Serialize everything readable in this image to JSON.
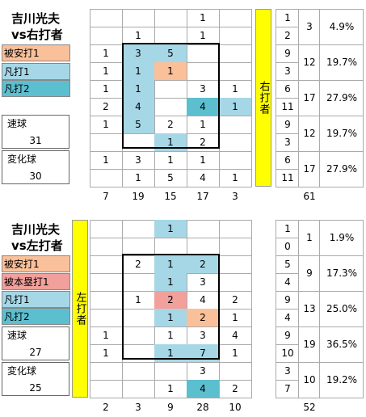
{
  "colors": {
    "hit": "#f9c09a",
    "hr": "#f1a09c",
    "out1": "#a6d7e6",
    "out2": "#5bbfcf",
    "bar": "#ffff00"
  },
  "legend_hit": "被安打1",
  "legend_hr": "被本塁打1",
  "legend_out1": "凡打1",
  "legend_out2": "凡打2",
  "pitch_fast_label": "速球",
  "pitch_break_label": "変化球",
  "chart_data": [
    {
      "type": "table",
      "title": "吉川光夫",
      "subtitle": "vs右打者",
      "side_label": "右打者",
      "legend": [
        "被安打1",
        "凡打1",
        "凡打2"
      ],
      "pitch": {
        "fast": "31",
        "breaking": "30"
      },
      "cells": [
        [
          {
            "v": ""
          },
          {
            "v": ""
          },
          {
            "v": ""
          },
          {
            "v": "1"
          },
          {
            "v": ""
          }
        ],
        [
          {
            "v": ""
          },
          {
            "v": "1"
          },
          {
            "v": ""
          },
          {
            "v": "1"
          },
          {
            "v": ""
          }
        ],
        [
          {
            "v": "1"
          },
          {
            "v": "3",
            "c": "out1"
          },
          {
            "v": "5",
            "c": "out1"
          },
          {
            "v": ""
          },
          {
            "v": ""
          }
        ],
        [
          {
            "v": "1"
          },
          {
            "v": "1",
            "c": "out1"
          },
          {
            "v": "1",
            "c": "hit"
          },
          {
            "v": ""
          },
          {
            "v": ""
          }
        ],
        [
          {
            "v": "1"
          },
          {
            "v": "1",
            "c": "out1"
          },
          {
            "v": ""
          },
          {
            "v": "3"
          },
          {
            "v": "1"
          }
        ],
        [
          {
            "v": "2"
          },
          {
            "v": "4",
            "c": "out1"
          },
          {
            "v": ""
          },
          {
            "v": "4",
            "c": "out2"
          },
          {
            "v": "1",
            "c": "out1"
          }
        ],
        [
          {
            "v": "1"
          },
          {
            "v": "5",
            "c": "out1"
          },
          {
            "v": "2"
          },
          {
            "v": "1"
          },
          {
            "v": ""
          }
        ],
        [
          {
            "v": ""
          },
          {
            "v": ""
          },
          {
            "v": "1",
            "c": "out1"
          },
          {
            "v": "2"
          },
          {
            "v": ""
          }
        ],
        [
          {
            "v": "1"
          },
          {
            "v": "3"
          },
          {
            "v": "1"
          },
          {
            "v": "1"
          },
          {
            "v": ""
          }
        ],
        [
          {
            "v": ""
          },
          {
            "v": "1"
          },
          {
            "v": "5"
          },
          {
            "v": "4"
          },
          {
            "v": "1"
          }
        ]
      ],
      "col_totals": [
        "7",
        "19",
        "15",
        "17",
        "3"
      ],
      "grand_total": "61",
      "rows": [
        {
          "top": "1",
          "bottom": "2",
          "total": "3",
          "pct": "4.9%"
        },
        {
          "top": "9",
          "bottom": "3",
          "total": "12",
          "pct": "19.7%"
        },
        {
          "top": "6",
          "bottom": "11",
          "total": "17",
          "pct": "27.9%"
        },
        {
          "top": "9",
          "bottom": "3",
          "total": "12",
          "pct": "19.7%"
        },
        {
          "top": "6",
          "bottom": "11",
          "total": "17",
          "pct": "27.9%"
        }
      ]
    },
    {
      "type": "table",
      "title": "吉川光夫",
      "subtitle": "vs左打者",
      "side_label": "左打者",
      "legend": [
        "被安打1",
        "被本塁打1",
        "凡打1",
        "凡打2"
      ],
      "pitch": {
        "fast": "27",
        "breaking": "25"
      },
      "cells": [
        [
          {
            "v": ""
          },
          {
            "v": ""
          },
          {
            "v": "1",
            "c": "out1"
          },
          {
            "v": ""
          },
          {
            "v": ""
          }
        ],
        [
          {
            "v": ""
          },
          {
            "v": ""
          },
          {
            "v": ""
          },
          {
            "v": ""
          },
          {
            "v": ""
          }
        ],
        [
          {
            "v": ""
          },
          {
            "v": "2"
          },
          {
            "v": "1",
            "c": "out1"
          },
          {
            "v": "2",
            "c": "out1"
          },
          {
            "v": ""
          }
        ],
        [
          {
            "v": ""
          },
          {
            "v": ""
          },
          {
            "v": "1",
            "c": "out1"
          },
          {
            "v": "3"
          },
          {
            "v": ""
          }
        ],
        [
          {
            "v": ""
          },
          {
            "v": "1"
          },
          {
            "v": "2",
            "c": "hr"
          },
          {
            "v": "4"
          },
          {
            "v": "2"
          }
        ],
        [
          {
            "v": ""
          },
          {
            "v": ""
          },
          {
            "v": "1",
            "c": "out1"
          },
          {
            "v": "2",
            "c": "hit"
          },
          {
            "v": "1"
          }
        ],
        [
          {
            "v": "1"
          },
          {
            "v": ""
          },
          {
            "v": "1"
          },
          {
            "v": "3"
          },
          {
            "v": "4"
          }
        ],
        [
          {
            "v": "1"
          },
          {
            "v": ""
          },
          {
            "v": "1",
            "c": "out1"
          },
          {
            "v": "7",
            "c": "out1"
          },
          {
            "v": "1"
          }
        ],
        [
          {
            "v": ""
          },
          {
            "v": ""
          },
          {
            "v": ""
          },
          {
            "v": "3"
          },
          {
            "v": ""
          }
        ],
        [
          {
            "v": ""
          },
          {
            "v": ""
          },
          {
            "v": "1"
          },
          {
            "v": "4",
            "c": "out2"
          },
          {
            "v": "2"
          }
        ]
      ],
      "col_totals": [
        "2",
        "3",
        "9",
        "28",
        "10"
      ],
      "grand_total": "52",
      "rows": [
        {
          "top": "1",
          "bottom": "0",
          "total": "1",
          "pct": "1.9%"
        },
        {
          "top": "5",
          "bottom": "4",
          "total": "9",
          "pct": "17.3%"
        },
        {
          "top": "9",
          "bottom": "4",
          "total": "13",
          "pct": "25.0%"
        },
        {
          "top": "9",
          "bottom": "10",
          "total": "19",
          "pct": "36.5%"
        },
        {
          "top": "3",
          "bottom": "7",
          "total": "10",
          "pct": "19.2%"
        }
      ]
    }
  ]
}
